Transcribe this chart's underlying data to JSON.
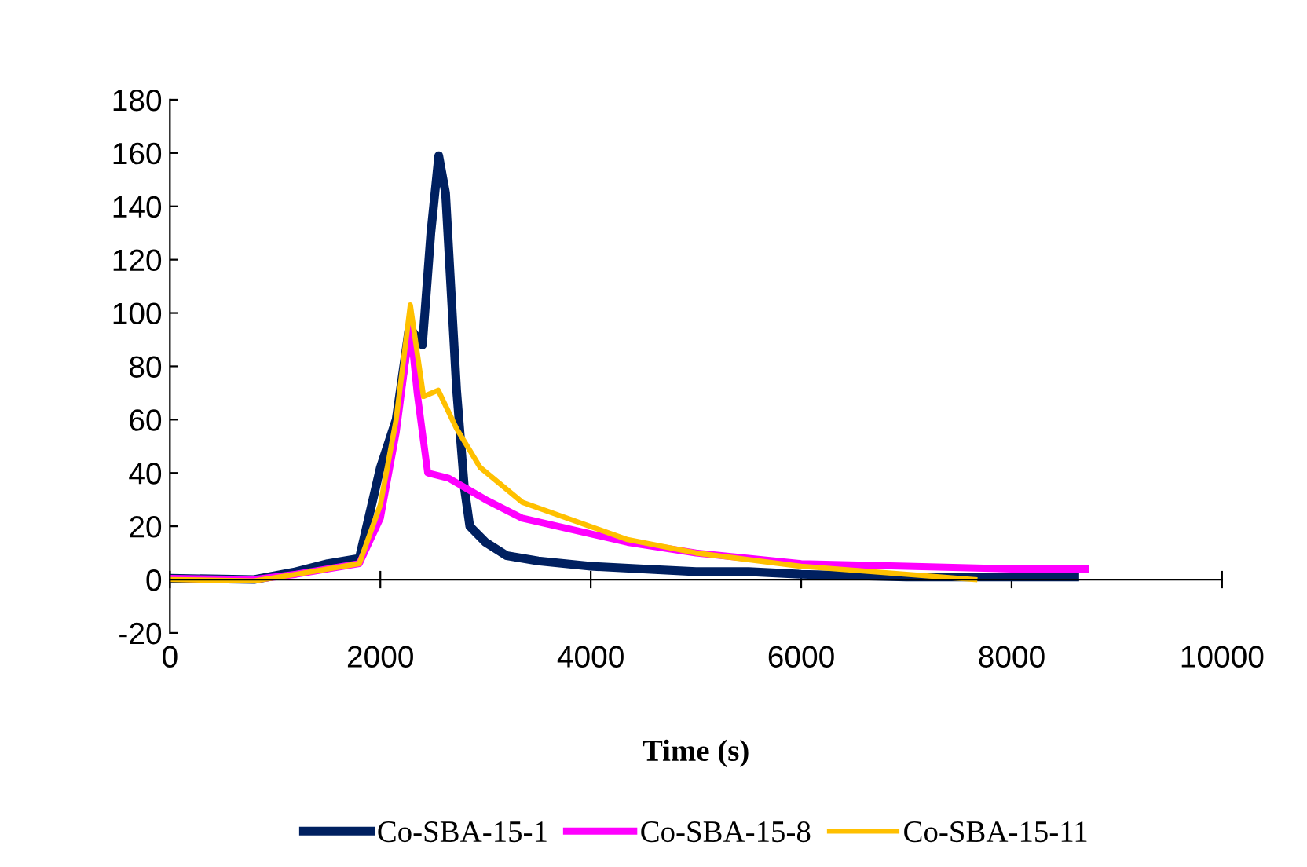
{
  "chart_data": {
    "type": "line",
    "xlabel": "Time (s)",
    "xlim": [
      0,
      10000
    ],
    "xticks": [
      0,
      2000,
      4000,
      6000,
      8000,
      10000
    ],
    "ylim": [
      -20,
      180
    ],
    "yticks": [
      -20,
      0,
      20,
      40,
      60,
      80,
      100,
      120,
      140,
      160,
      180
    ],
    "grid": false,
    "legend": "bottom",
    "marker": "none",
    "line_style": "solid",
    "series": [
      {
        "name": "Co-SBA-15-1",
        "color": "#002060",
        "x": [
          0,
          800,
          1200,
          1500,
          1800,
          2000,
          2150,
          2275,
          2400,
          2480,
          2555,
          2620,
          2725,
          2800,
          2850,
          3000,
          3200,
          3500,
          4000,
          4500,
          5000,
          5500,
          6000,
          7000,
          8000,
          8600
        ],
        "values": [
          0.5,
          0,
          3,
          6,
          8,
          42,
          60,
          94.7,
          88,
          130,
          159,
          145,
          71,
          34,
          20,
          14,
          9,
          7,
          5,
          4,
          3,
          3,
          2,
          1,
          1,
          1
        ]
      },
      {
        "name": "Co-SBA-15-8",
        "color": "#ff00ff",
        "x": [
          0,
          800,
          1200,
          1500,
          1800,
          2000,
          2150,
          2285,
          2350,
          2450,
          2650,
          3000,
          3350,
          4350,
          5000,
          6000,
          7000,
          8000,
          8700
        ],
        "values": [
          0.5,
          0,
          2,
          4,
          6,
          23,
          55,
          95.6,
          70,
          40,
          38,
          30,
          23,
          14,
          10,
          6,
          5,
          4,
          4
        ]
      },
      {
        "name": "Co-SBA-15-11",
        "color": "#ffc000",
        "x": [
          0,
          800,
          1200,
          1500,
          1800,
          2000,
          2150,
          2285,
          2410,
          2550,
          2725,
          2950,
          3350,
          4350,
          5000,
          6000,
          7000,
          7650
        ],
        "values": [
          0,
          -0.5,
          2,
          4,
          6,
          28,
          60,
          103,
          68.7,
          71,
          56.6,
          42,
          29,
          15,
          10,
          5,
          2,
          0
        ]
      }
    ]
  }
}
